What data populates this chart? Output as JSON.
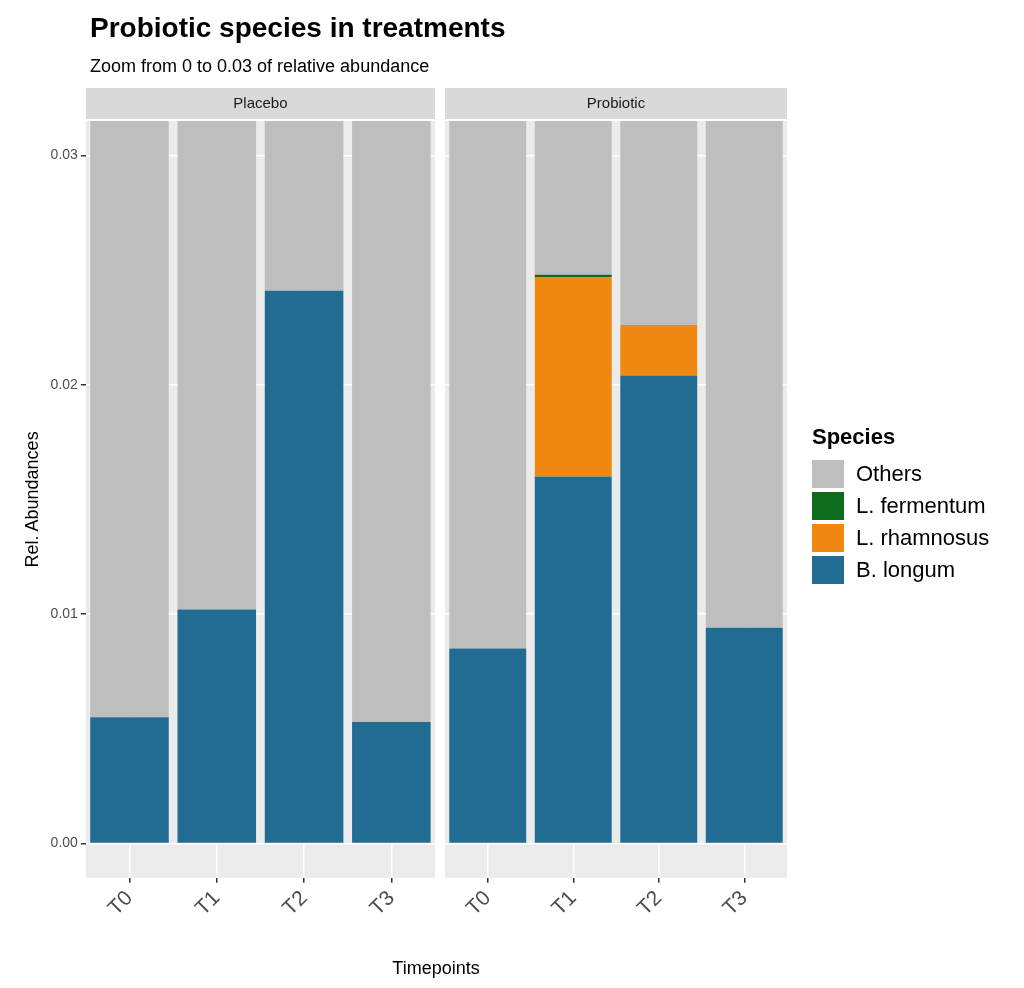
{
  "chart_data": [
    {
      "type": "bar",
      "title": "Probiotic species in treatments",
      "subtitle": "Zoom from 0 to 0.03 of relative abundance",
      "ylabel": "Rel. Abundances",
      "xlabel": "Timepoints",
      "annotations": [
        "Placebo"
      ],
      "categories": [
        "T0",
        "T1",
        "T2",
        "T3"
      ],
      "stacked": true,
      "ylim": [
        -0.0015,
        0.0315
      ],
      "yticks": [
        {
          "value": 0,
          "label": "0.00"
        },
        0.01,
        0.02,
        0.03
      ],
      "grid": true,
      "legend": false,
      "series": [
        {
          "color": "#226c93",
          "values": [
            0.0055,
            0.0102,
            0.0241,
            0.0053
          ]
        },
        {
          "color": "#ef8711",
          "values": [
            0,
            0,
            0,
            0
          ]
        },
        {
          "color": "#0f6b1c",
          "values": [
            0,
            0,
            0,
            0
          ]
        },
        {
          "color": "#bebebe",
          "values": [
            0.026,
            0.0213,
            0.0074,
            0.0262
          ]
        }
      ]
    },
    {
      "type": "bar",
      "annotations": [
        "Probiotic"
      ],
      "categories": [
        "T0",
        "T1",
        "T2",
        "T3"
      ],
      "stacked": true,
      "ylim": [
        -0.0015,
        0.0315
      ],
      "yticks": [
        0,
        0.01,
        0.02,
        0.03
      ],
      "grid": true,
      "tick_labels": "x",
      "legend": "right",
      "legend_title": "Species",
      "series": [
        {
          "name": "B. longum",
          "color": "#226c93",
          "values": [
            0.0085,
            0.016,
            0.0204,
            0.0094
          ]
        },
        {
          "name": "L. rhamnosus",
          "color": "#ef8711",
          "values": [
            0,
            0.0087,
            0.0022,
            0
          ]
        },
        {
          "name": "L. fermentum",
          "color": "#0f6b1c",
          "values": [
            0,
            0.0001,
            0,
            0
          ]
        },
        {
          "name": "Others",
          "color": "#bebebe",
          "values": [
            0.023,
            0.0067,
            0.0089,
            0.0221
          ]
        }
      ]
    }
  ]
}
